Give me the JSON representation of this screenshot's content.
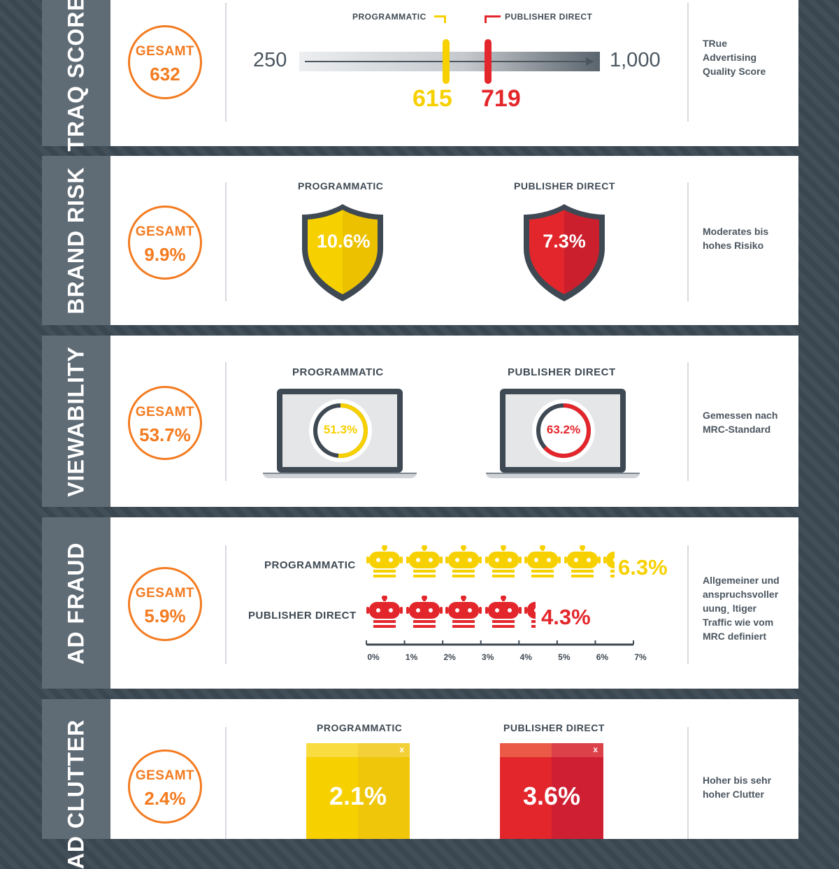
{
  "traq": {
    "title": "TRAQ SCORE",
    "total_label": "GESAMT",
    "total_value": "632",
    "scale_min": "250",
    "scale_max": "1,000",
    "programmatic_label": "PROGRAMMATIC",
    "publisher_label": "PUBLISHER DIRECT",
    "programmatic_value": "615",
    "publisher_value": "719",
    "programmatic_score": 615,
    "publisher_score": 719,
    "desc": [
      "TRue",
      "Advertising",
      "Quality Score"
    ]
  },
  "brand": {
    "title": "BRAND RISK",
    "total_label": "GESAMT",
    "total_value": "9.9%",
    "programmatic_label": "PROGRAMMATIC",
    "publisher_label": "PUBLISHER DIRECT",
    "programmatic_value": "10.6%",
    "publisher_value": "7.3%",
    "desc": [
      "Moderates bis",
      "hohes Risiko"
    ]
  },
  "view": {
    "title": "VIEWABILITY",
    "total_label": "GESAMT",
    "total_value": "53.7%",
    "programmatic_label": "PROGRAMMATIC",
    "publisher_label": "PUBLISHER DIRECT",
    "programmatic_value": "51.3%",
    "publisher_value": "63.2%",
    "programmatic_pct": 51.3,
    "publisher_pct": 63.2,
    "desc": [
      "Gemessen nach",
      "MRC-Standard"
    ]
  },
  "fraud": {
    "title": "AD FRAUD",
    "total_label": "GESAMT",
    "total_value": "5.9%",
    "programmatic_label": "PROGRAMMATIC",
    "publisher_label": "PUBLISHER DIRECT",
    "programmatic_value": "6.3%",
    "publisher_value": "4.3%",
    "programmatic_pct": 6.3,
    "publisher_pct": 4.3,
    "axis_ticks": [
      "0%",
      "1%",
      "2%",
      "3%",
      "4%",
      "5%",
      "6%",
      "7%"
    ],
    "desc": [
      "Allgemeiner und",
      "anspruchsvoller",
      "uung¸ ltiger",
      "Traffic wie vom",
      "MRC definiert"
    ]
  },
  "clutter": {
    "title": "AD CLUTTER",
    "total_label": "GESAMT",
    "total_value": "2.4%",
    "programmatic_label": "PROGRAMMATIC",
    "publisher_label": "PUBLISHER DIRECT",
    "programmatic_value": "2.1%",
    "publisher_value": "3.6%",
    "close_glyph": "x",
    "desc": [
      "Hoher bis sehr",
      "hoher Clutter"
    ]
  },
  "colors": {
    "programmatic": "#f7d000",
    "publisher": "#e3262b",
    "accent": "#f37b20",
    "tab": "#5f6b75",
    "dark": "#3e4953"
  }
}
